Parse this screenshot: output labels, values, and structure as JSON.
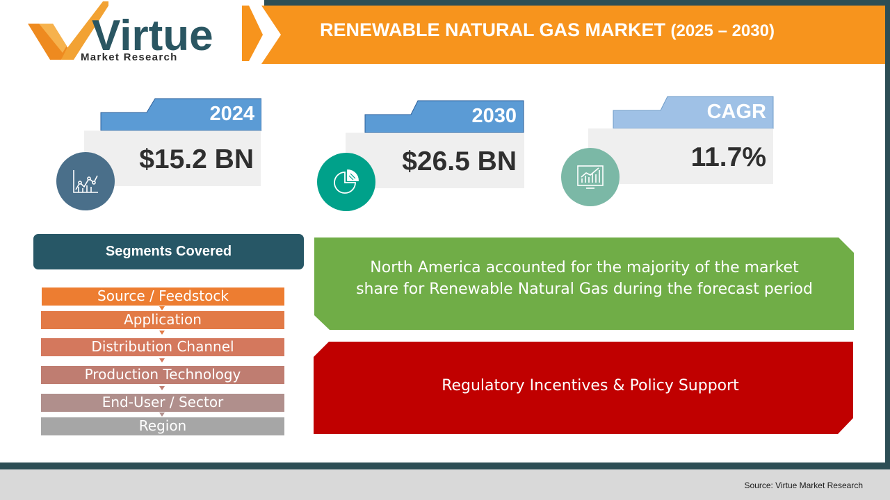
{
  "logo": {
    "word": "Virtue",
    "sub": "Market Research"
  },
  "title": {
    "main": "RENEWABLE NATURAL GAS MARKET",
    "years": "(2025 – 2030)"
  },
  "stats": [
    {
      "year": "2024",
      "value": "$15.2 BN",
      "icon": "line-chart-icon",
      "circle_color": "#4a6f8a"
    },
    {
      "year": "2030",
      "value": "$26.5 BN",
      "icon": "pie-chart-icon",
      "circle_color": "#00a18a"
    },
    {
      "year": "CAGR",
      "value": "11.7%",
      "icon": "bar-chart-icon",
      "circle_color": "#7bb8a6"
    }
  ],
  "segments": {
    "header": "Segments Covered",
    "items": [
      {
        "label": "Source / Feedstock",
        "color": "#ed7d31"
      },
      {
        "label": "Application",
        "color": "#e27a46"
      },
      {
        "label": "Distribution Channel",
        "color": "#d4785d"
      },
      {
        "label": "Production Technology",
        "color": "#bf7d71"
      },
      {
        "label": "End-User / Sector",
        "color": "#b08f8c"
      },
      {
        "label": "Region",
        "color": "#a6a6a6"
      }
    ]
  },
  "highlight": {
    "line1": "North America  accounted for the majority of the market",
    "line2": "share for Renewable Natural Gas during the forecast period",
    "color": "#70ad47"
  },
  "driver": {
    "text": "Regulatory Incentives & Policy Support",
    "color": "#c00000"
  },
  "footer": {
    "source": "Source: Virtue Market Research"
  }
}
